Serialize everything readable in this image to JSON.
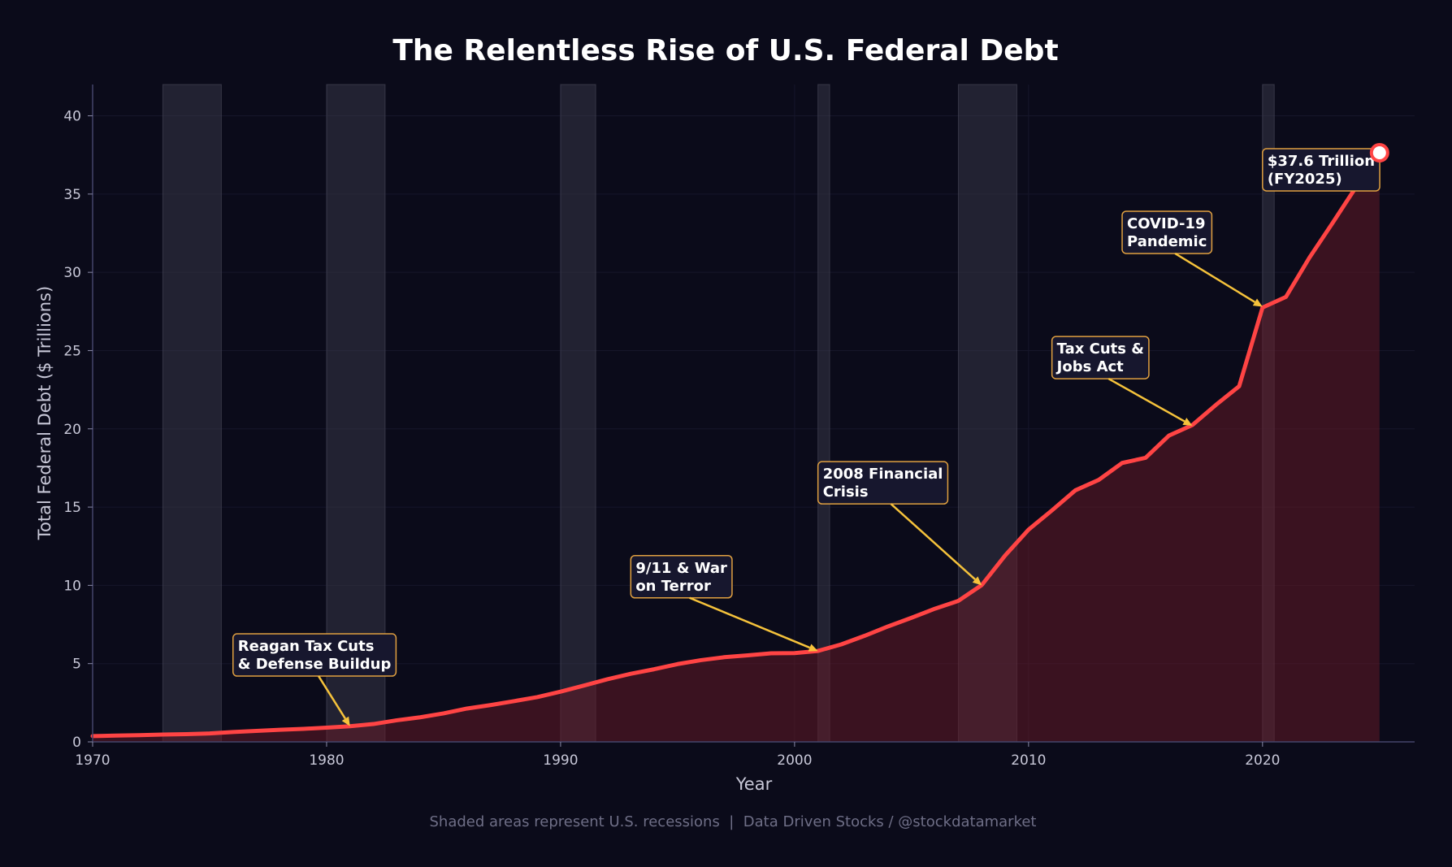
{
  "chart_data": {
    "type": "area",
    "title": "The Relentless Rise of U.S. Federal Debt",
    "xlabel": "Year",
    "ylabel": "Total Federal Debt ($ Trillions)",
    "xlim": [
      1970,
      2026.5
    ],
    "ylim": [
      0,
      42
    ],
    "xticks": [
      1970,
      1980,
      1990,
      2000,
      2010,
      2020
    ],
    "yticks": [
      0,
      5,
      10,
      15,
      20,
      25,
      30,
      35,
      40
    ],
    "grid": true,
    "footnote": "Shaded areas represent U.S. recessions  |  Data Driven Stocks / @stockdatamarket",
    "series": [
      {
        "name": "Total Federal Debt",
        "color": "#ff4444",
        "x": [
          1970,
          1971,
          1972,
          1973,
          1974,
          1975,
          1976,
          1977,
          1978,
          1979,
          1980,
          1981,
          1982,
          1983,
          1984,
          1985,
          1986,
          1987,
          1988,
          1989,
          1990,
          1991,
          1992,
          1993,
          1994,
          1995,
          1996,
          1997,
          1998,
          1999,
          2000,
          2001,
          2002,
          2003,
          2004,
          2005,
          2006,
          2007,
          2008,
          2009,
          2010,
          2011,
          2012,
          2013,
          2014,
          2015,
          2016,
          2017,
          2018,
          2019,
          2020,
          2021,
          2022,
          2023,
          2024,
          2025
        ],
        "y": [
          0.37,
          0.4,
          0.43,
          0.47,
          0.49,
          0.54,
          0.63,
          0.7,
          0.77,
          0.83,
          0.91,
          1.0,
          1.14,
          1.38,
          1.57,
          1.82,
          2.13,
          2.35,
          2.6,
          2.86,
          3.21,
          3.6,
          4.0,
          4.35,
          4.64,
          4.97,
          5.22,
          5.41,
          5.53,
          5.66,
          5.67,
          5.81,
          6.23,
          6.78,
          7.38,
          7.93,
          8.51,
          9.01,
          10.02,
          11.91,
          13.56,
          14.79,
          16.07,
          16.74,
          17.82,
          18.15,
          19.57,
          20.24,
          21.52,
          22.72,
          27.75,
          28.43,
          30.93,
          33.17,
          35.46,
          37.64
        ]
      }
    ],
    "recessions": [
      {
        "start": 1973.0,
        "end": 1975.5
      },
      {
        "start": 1980.0,
        "end": 1982.5
      },
      {
        "start": 1990.0,
        "end": 1991.5
      },
      {
        "start": 2001.0,
        "end": 2001.5
      },
      {
        "start": 2007.0,
        "end": 2009.5
      },
      {
        "start": 2020.0,
        "end": 2020.5
      }
    ],
    "annotations": [
      {
        "name": "reagan",
        "lines": [
          "Reagan Tax Cuts",
          "& Defense Buildup"
        ],
        "text_x": 1976.0,
        "text_y": 5.5,
        "target_x": 1981.0,
        "target_y": 1.0
      },
      {
        "name": "war-on-terror",
        "lines": [
          "9/11 & War",
          "on Terror"
        ],
        "text_x": 1993.0,
        "text_y": 10.5,
        "target_x": 2001.0,
        "target_y": 5.8
      },
      {
        "name": "financial-crisis",
        "lines": [
          "2008 Financial",
          "Crisis"
        ],
        "text_x": 2001.0,
        "text_y": 16.5,
        "target_x": 2008.0,
        "target_y": 10.0
      },
      {
        "name": "tcja",
        "lines": [
          "Tax Cuts &",
          "Jobs Act"
        ],
        "text_x": 2011.0,
        "text_y": 24.5,
        "target_x": 2017.0,
        "target_y": 20.2
      },
      {
        "name": "covid",
        "lines": [
          "COVID-19",
          "Pandemic"
        ],
        "text_x": 2014.0,
        "text_y": 32.5,
        "target_x": 2020.0,
        "target_y": 27.8
      },
      {
        "name": "latest",
        "lines": [
          "$37.6 Trillion",
          "(FY2025)"
        ],
        "text_x": 2020.0,
        "text_y": 36.5,
        "target_x": null,
        "target_y": null
      }
    ],
    "endpoint": {
      "x": 2025,
      "y": 37.64
    }
  },
  "colors": {
    "background": "#0b0b1a",
    "line": "#ff4444",
    "fill": "#3a1822",
    "recession": "#2a2a38",
    "annotation_box": "#17172e",
    "annotation_border": "#e0a040",
    "arrow": "#f5c23b",
    "axis": "#44446a",
    "grid": "#16162a"
  }
}
